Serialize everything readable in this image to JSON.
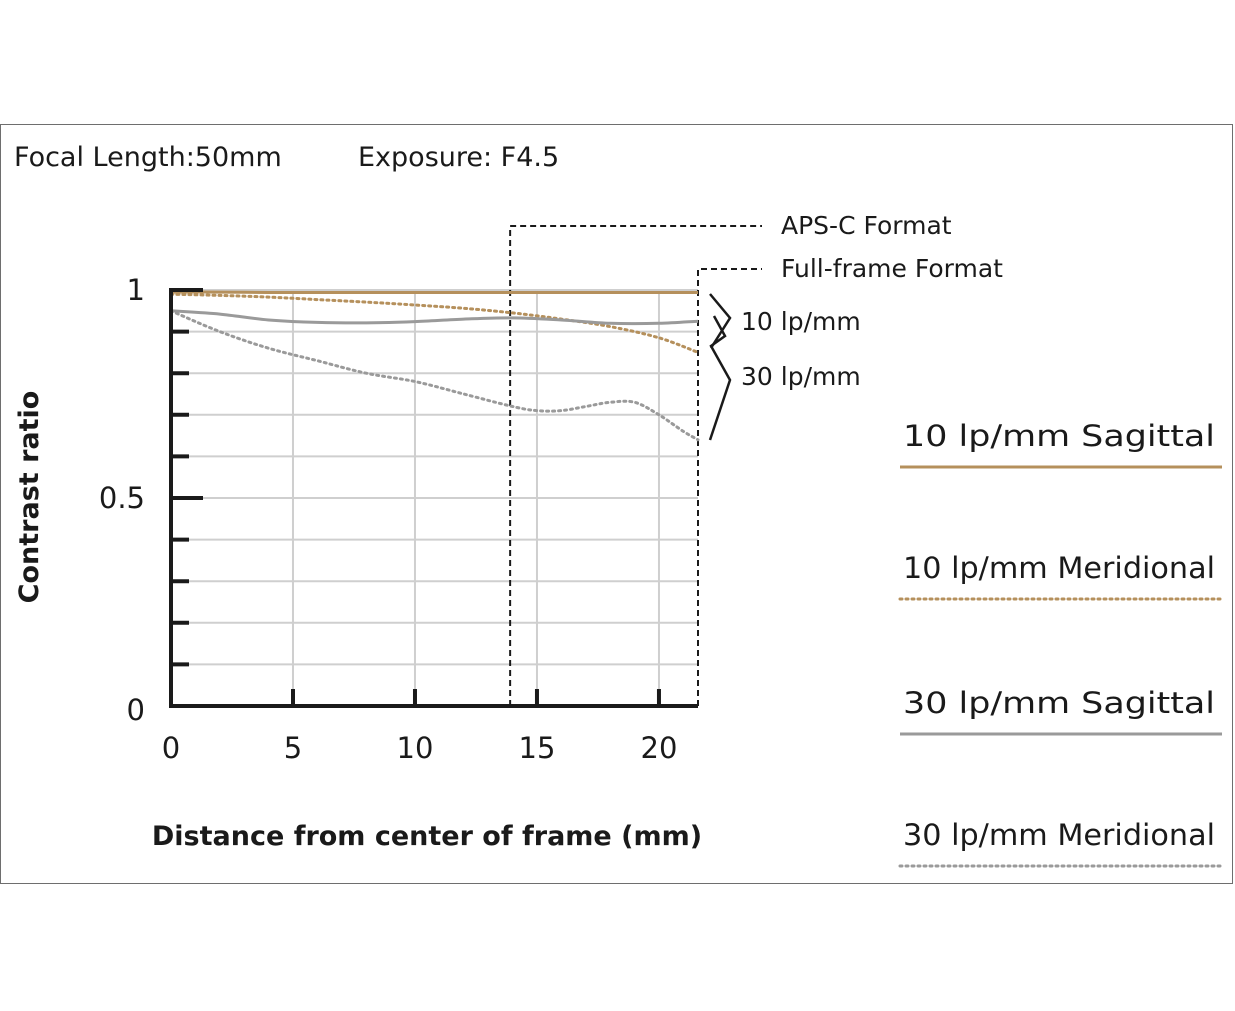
{
  "header": {
    "focal_label": "Focal Length:50mm",
    "exposure_label": "Exposure: F4.5"
  },
  "chart_data": {
    "type": "line",
    "xlabel": "Distance from center of frame (mm)",
    "ylabel": "Contrast ratio",
    "xlim": [
      0,
      21.6
    ],
    "ylim": [
      0,
      1
    ],
    "x_ticks": [
      0,
      5,
      10,
      15,
      20
    ],
    "x_tick_labels": [
      "0",
      "5",
      "10",
      "15",
      "20"
    ],
    "y_tick_labels": [
      {
        "value": 0,
        "label": "0"
      },
      {
        "value": 0.5,
        "label": "0.5"
      },
      {
        "value": 1,
        "label": "1"
      }
    ],
    "y_minor_ticks": [
      0.1,
      0.2,
      0.3,
      0.4,
      0.6,
      0.7,
      0.8,
      0.9
    ],
    "grid": true,
    "series": [
      {
        "name": "10 lp/mm Sagittal",
        "color": "#b5905c",
        "dash": "solid",
        "x": [
          0,
          2,
          4,
          6,
          8,
          10,
          12,
          14,
          16,
          18,
          20,
          21.6
        ],
        "y": [
          0.995,
          0.995,
          0.994,
          0.994,
          0.994,
          0.994,
          0.994,
          0.994,
          0.994,
          0.994,
          0.994,
          0.994
        ]
      },
      {
        "name": "10 lp/mm Meridional",
        "color": "#b5905c",
        "dash": "dotted",
        "x": [
          0,
          2,
          4,
          6,
          8,
          10,
          12,
          14,
          16,
          18,
          20,
          21.6
        ],
        "y": [
          0.99,
          0.987,
          0.983,
          0.977,
          0.971,
          0.964,
          0.956,
          0.945,
          0.93,
          0.912,
          0.885,
          0.85
        ]
      },
      {
        "name": "30 lp/mm Sagittal",
        "color": "#9a9a9a",
        "dash": "solid",
        "x": [
          0,
          2,
          4,
          6,
          8,
          10,
          12,
          14,
          16,
          18,
          20,
          21.6
        ],
        "y": [
          0.95,
          0.942,
          0.928,
          0.922,
          0.921,
          0.924,
          0.93,
          0.933,
          0.928,
          0.92,
          0.92,
          0.925
        ]
      },
      {
        "name": "30 lp/mm Meridional",
        "color": "#9a9a9a",
        "dash": "dotted",
        "x": [
          0,
          2,
          4,
          6,
          8,
          10,
          12,
          14,
          15,
          16,
          17,
          18,
          19,
          20,
          21,
          21.6
        ],
        "y": [
          0.95,
          0.9,
          0.86,
          0.83,
          0.8,
          0.78,
          0.75,
          0.72,
          0.71,
          0.71,
          0.72,
          0.73,
          0.73,
          0.7,
          0.66,
          0.64
        ]
      }
    ],
    "formats": [
      {
        "label": "APS-C Format",
        "x": 13.9
      },
      {
        "label": "Full-frame Format",
        "x": 21.6
      }
    ],
    "brace_labels": [
      "10 lp/mm",
      "30 lp/mm"
    ]
  },
  "legend": {
    "items": [
      {
        "label": "10 lp/mm Sagittal",
        "color": "#b5905c",
        "dash": "solid"
      },
      {
        "label": "10 lp/mm Meridional",
        "color": "#b5905c",
        "dash": "dotted"
      },
      {
        "label": "30 lp/mm Sagittal",
        "color": "#9a9a9a",
        "dash": "solid"
      },
      {
        "label": "30 lp/mm Meridional",
        "color": "#9a9a9a",
        "dash": "dotted"
      }
    ]
  }
}
